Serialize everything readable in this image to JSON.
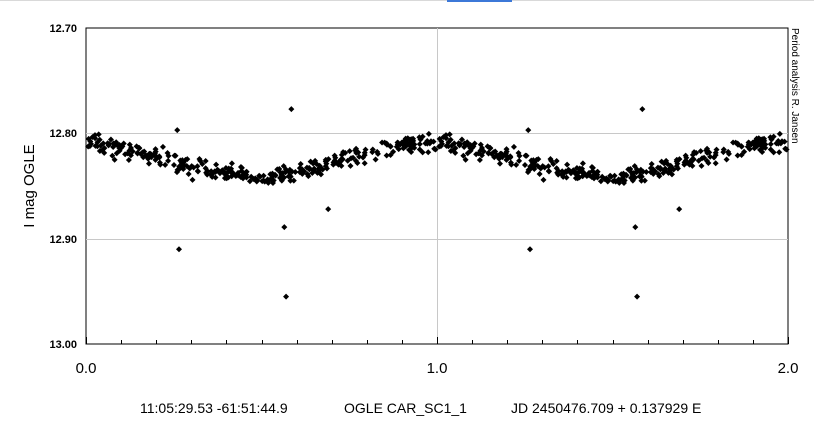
{
  "chart_data": {
    "type": "scatter",
    "ylabel": "I mag OGLE",
    "xlim": [
      0.0,
      2.0
    ],
    "ylim": [
      12.7,
      13.0
    ],
    "y_inverted": true,
    "x_ticks": [
      "0.0",
      "1.0",
      "2.0"
    ],
    "y_ticks": [
      "12.70",
      "12.80",
      "12.90",
      "13.00"
    ],
    "grid": true,
    "marker": "diamond",
    "marker_color": "#000000",
    "annotation": "Period analysis  R. Jansen",
    "coordinates": "11:05:29.53 -61:51:44.9",
    "object": "OGLE CAR_SC1_1",
    "ephemeris": "JD 2450476.709 + 0.137929 E",
    "light_curve": {
      "phase": [
        0.0,
        0.1,
        0.2,
        0.3,
        0.4,
        0.5,
        0.6,
        0.7,
        0.8,
        0.9,
        1.0
      ],
      "mean_mag": [
        12.81,
        12.815,
        12.822,
        12.832,
        12.838,
        12.842,
        12.838,
        12.828,
        12.818,
        12.81,
        12.81
      ],
      "scatter": 0.008
    },
    "outliers": [
      {
        "x": 0.26,
        "y": 12.797
      },
      {
        "x": 0.265,
        "y": 12.91
      },
      {
        "x": 0.565,
        "y": 12.889
      },
      {
        "x": 0.57,
        "y": 12.955
      },
      {
        "x": 0.585,
        "y": 12.777
      },
      {
        "x": 0.69,
        "y": 12.872
      },
      {
        "x": 1.26,
        "y": 12.797
      },
      {
        "x": 1.265,
        "y": 12.91
      },
      {
        "x": 1.565,
        "y": 12.889
      },
      {
        "x": 1.57,
        "y": 12.955
      },
      {
        "x": 1.585,
        "y": 12.777
      },
      {
        "x": 1.69,
        "y": 12.872
      }
    ]
  }
}
